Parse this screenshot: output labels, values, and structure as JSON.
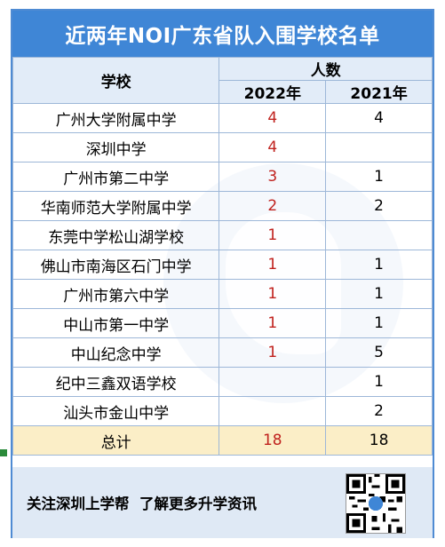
{
  "title": "近两年NOI广东省队入围学校名单",
  "table": {
    "header_school": "学校",
    "header_count": "人数",
    "header_years": [
      "2022年",
      "2021年"
    ],
    "rows": [
      {
        "school": "广州大学附属中学",
        "y2022": "4",
        "y2021": "4"
      },
      {
        "school": "深圳中学",
        "y2022": "4",
        "y2021": ""
      },
      {
        "school": "广州市第二中学",
        "y2022": "3",
        "y2021": "1"
      },
      {
        "school": "华南师范大学附属中学",
        "y2022": "2",
        "y2021": "2"
      },
      {
        "school": "东莞中学松山湖学校",
        "y2022": "1",
        "y2021": ""
      },
      {
        "school": "佛山市南海区石门中学",
        "y2022": "1",
        "y2021": "1"
      },
      {
        "school": "广州市第六中学",
        "y2022": "1",
        "y2021": "1"
      },
      {
        "school": "中山市第一中学",
        "y2022": "1",
        "y2021": "1"
      },
      {
        "school": "中山纪念中学",
        "y2022": "1",
        "y2021": "5"
      },
      {
        "school": "纪中三鑫双语学校",
        "y2022": "",
        "y2021": "1"
      },
      {
        "school": "汕头市金山中学",
        "y2022": "",
        "y2021": "2"
      }
    ],
    "total_label": "总计",
    "total_2022": "18",
    "total_2021": "18"
  },
  "footer": {
    "text": "关注深圳上学帮  了解更多升学资讯",
    "qr_icon": "qr-code-icon"
  },
  "colors": {
    "banner": "#3f86d6",
    "highlight_2022": "#c0211d",
    "total_row": "#fbeec7",
    "footer_bg": "#dfe9f5"
  }
}
